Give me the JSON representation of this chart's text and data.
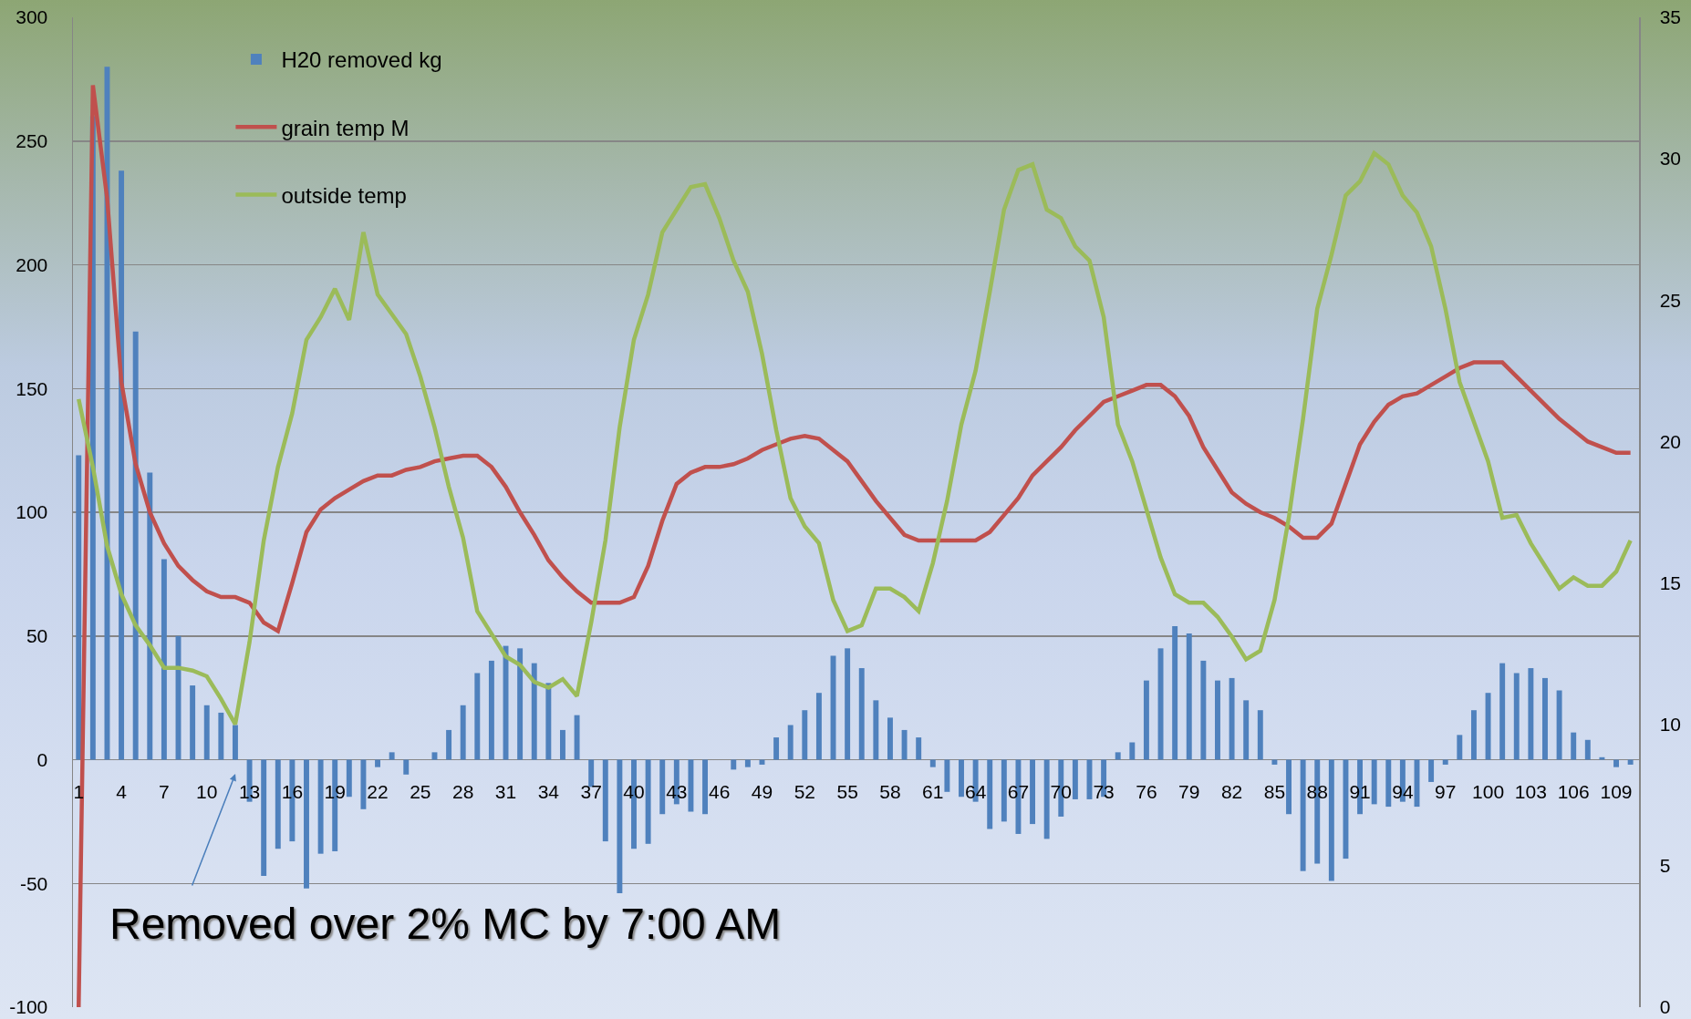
{
  "chart_data": {
    "type": "bar",
    "x": [
      1,
      2,
      3,
      4,
      5,
      6,
      7,
      8,
      9,
      10,
      11,
      12,
      13,
      14,
      15,
      16,
      17,
      18,
      19,
      20,
      21,
      22,
      23,
      24,
      25,
      26,
      27,
      28,
      29,
      30,
      31,
      32,
      33,
      34,
      35,
      36,
      37,
      38,
      39,
      40,
      41,
      42,
      43,
      44,
      45,
      46,
      47,
      48,
      49,
      50,
      51,
      52,
      53,
      54,
      55,
      56,
      57,
      58,
      59,
      60,
      61,
      62,
      63,
      64,
      65,
      66,
      67,
      68,
      69,
      70,
      71,
      72,
      73,
      74,
      75,
      76,
      77,
      78,
      79,
      80,
      81,
      82,
      83,
      84,
      85,
      86,
      87,
      88,
      89,
      90,
      91,
      92,
      93,
      94,
      95,
      96,
      97,
      98,
      99,
      100,
      101,
      102,
      103,
      104,
      105,
      106,
      107,
      108,
      109,
      110
    ],
    "series": [
      {
        "name": "H20 removed kg",
        "color": "#4f81bd",
        "values": [
          123,
          260,
          280,
          238,
          173,
          116,
          81,
          50,
          30,
          22,
          19,
          14,
          -17,
          -47,
          -36,
          -33,
          -52,
          -38,
          -37,
          -15,
          -20,
          -3,
          3,
          -6,
          0,
          3,
          12,
          22,
          35,
          40,
          46,
          45,
          39,
          31,
          12,
          18,
          -11,
          -33,
          -54,
          -36,
          -34,
          -22,
          -18,
          -21,
          -22,
          0,
          -4,
          -3,
          -2,
          9,
          14,
          20,
          27,
          42,
          45,
          37,
          24,
          17,
          12,
          9,
          -3,
          -13,
          -15,
          -17,
          -28,
          -25,
          -30,
          -26,
          -32,
          -23,
          -16,
          -16,
          -15,
          3,
          7,
          32,
          45,
          54,
          51,
          40,
          32,
          33,
          24,
          20,
          -2,
          -22,
          -45,
          -42,
          -49,
          -40,
          -22,
          -18,
          -19,
          -17,
          -19,
          -9,
          -2,
          10,
          20,
          27,
          39,
          35,
          37,
          33,
          28,
          11,
          8,
          1,
          -3,
          -2
        ]
      },
      {
        "type": "line",
        "name": "grain temp M",
        "color": "#c0504d",
        "axis": "y2",
        "values": [
          0,
          32.6,
          28.6,
          22.1,
          19.2,
          17.5,
          16.4,
          15.6,
          15.1,
          14.7,
          14.5,
          14.5,
          14.3,
          13.6,
          13.3,
          15.0,
          16.8,
          17.6,
          18.0,
          18.3,
          18.6,
          18.8,
          18.8,
          19.0,
          19.1,
          19.3,
          19.4,
          19.5,
          19.5,
          19.1,
          18.4,
          17.5,
          16.7,
          15.8,
          15.2,
          14.7,
          14.3,
          14.3,
          14.3,
          14.5,
          15.6,
          17.2,
          18.5,
          18.9,
          19.1,
          19.1,
          19.2,
          19.4,
          19.7,
          19.9,
          20.1,
          20.2,
          20.1,
          19.7,
          19.3,
          18.6,
          17.9,
          17.3,
          16.7,
          16.5,
          16.5,
          16.5,
          16.5,
          16.5,
          16.8,
          17.4,
          18.0,
          18.8,
          19.3,
          19.8,
          20.4,
          20.9,
          21.4,
          21.6,
          21.8,
          22.0,
          22.0,
          21.6,
          20.9,
          19.8,
          19.0,
          18.2,
          17.8,
          17.5,
          17.3,
          17.0,
          16.6,
          16.6,
          17.1,
          18.5,
          19.9,
          20.7,
          21.3,
          21.6,
          21.7,
          22.0,
          22.3,
          22.6,
          22.8,
          22.8,
          22.8,
          22.3,
          21.8,
          21.3,
          20.8,
          20.4,
          20.0,
          19.8,
          19.6,
          19.6
        ]
      },
      {
        "type": "line",
        "name": "outside temp",
        "color": "#9bbb59",
        "axis": "y2",
        "values": [
          21.5,
          19.1,
          16.3,
          14.6,
          13.5,
          12.8,
          12.0,
          12.0,
          11.9,
          11.7,
          10.9,
          10.0,
          12.9,
          16.5,
          19.1,
          21.0,
          23.6,
          24.4,
          25.4,
          24.3,
          27.4,
          25.2,
          24.5,
          23.8,
          22.3,
          20.5,
          18.4,
          16.6,
          14.0,
          13.2,
          12.4,
          12.1,
          11.5,
          11.3,
          11.6,
          11.0,
          13.6,
          16.5,
          20.5,
          23.6,
          25.2,
          27.4,
          28.2,
          29.0,
          29.1,
          27.9,
          26.4,
          25.3,
          23.1,
          20.4,
          18.0,
          17.0,
          16.4,
          14.4,
          13.3,
          13.5,
          14.8,
          14.8,
          14.5,
          14.0,
          15.7,
          17.9,
          20.6,
          22.5,
          25.3,
          28.2,
          29.6,
          29.8,
          28.2,
          27.9,
          26.9,
          26.4,
          24.4,
          20.6,
          19.3,
          17.6,
          15.9,
          14.6,
          14.3,
          14.3,
          13.8,
          13.1,
          12.3,
          12.6,
          14.4,
          17.3,
          20.8,
          24.7,
          26.6,
          28.7,
          29.2,
          30.2,
          29.8,
          28.7,
          28.1,
          26.9,
          24.7,
          22.1,
          20.7,
          19.3,
          17.3,
          17.4,
          16.4,
          15.6,
          14.8,
          15.2,
          14.9,
          14.9,
          15.4,
          16.5
        ]
      }
    ],
    "xlim": [
      0.6,
      110.6
    ],
    "xticks": [
      1,
      4,
      7,
      10,
      13,
      16,
      19,
      22,
      25,
      28,
      31,
      34,
      37,
      40,
      43,
      46,
      49,
      52,
      55,
      58,
      61,
      64,
      67,
      70,
      73,
      76,
      79,
      82,
      85,
      88,
      91,
      94,
      97,
      100,
      103,
      106,
      109
    ],
    "ylim": [
      -100,
      300
    ],
    "yticks": [
      -100,
      -50,
      0,
      50,
      100,
      150,
      200,
      250,
      300
    ],
    "y2lim": [
      0,
      35
    ],
    "y2ticks": [
      0,
      5,
      10,
      15,
      20,
      25,
      30,
      35
    ],
    "grid": "y",
    "legend": "top left",
    "annotations": [
      "Removed over 2% MC by 7:00 AM"
    ]
  }
}
